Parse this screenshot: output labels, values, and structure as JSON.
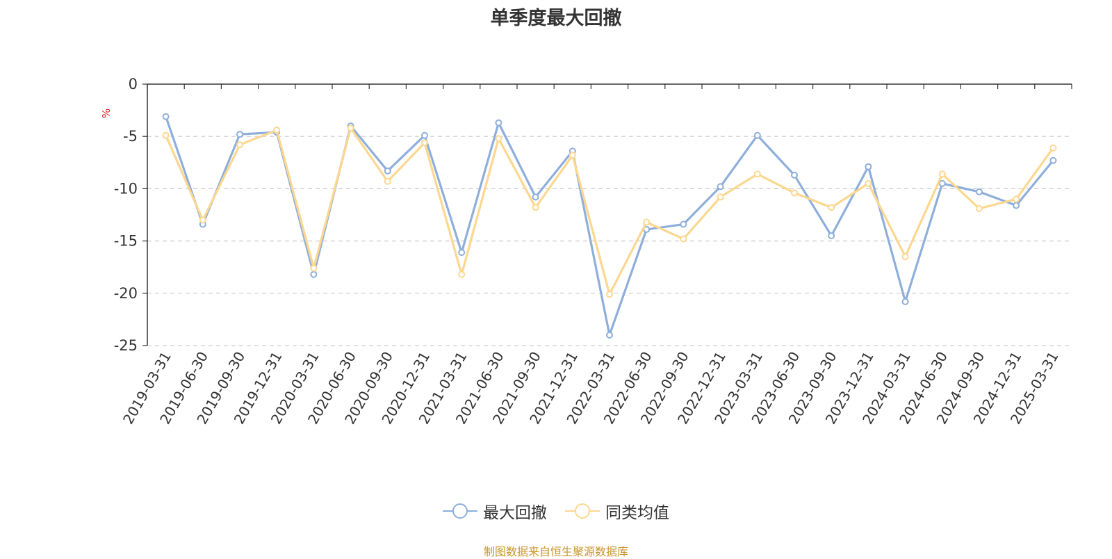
{
  "chart_data": {
    "type": "line",
    "title": "单季度最大回撤",
    "ylabel": "%",
    "xlabel": "",
    "ylim": [
      -25,
      0
    ],
    "yticks": [
      0,
      -5,
      -10,
      -15,
      -20,
      -25
    ],
    "grid": true,
    "legend_position": "bottom",
    "categories": [
      "2019-03-31",
      "2019-06-30",
      "2019-09-30",
      "2019-12-31",
      "2020-03-31",
      "2020-06-30",
      "2020-09-30",
      "2020-12-31",
      "2021-03-31",
      "2021-06-30",
      "2021-09-30",
      "2021-12-31",
      "2022-03-31",
      "2022-06-30",
      "2022-09-30",
      "2022-12-31",
      "2023-03-31",
      "2023-06-30",
      "2023-09-30",
      "2023-12-31",
      "2024-03-31",
      "2024-06-30",
      "2024-09-30",
      "2024-12-31",
      "2025-03-31"
    ],
    "series": [
      {
        "name": "最大回撤",
        "color": "#8eaedb",
        "values": [
          -3.1,
          -13.4,
          -4.8,
          -4.6,
          -18.2,
          -4.0,
          -8.3,
          -4.9,
          -16.1,
          -3.7,
          -10.8,
          -6.4,
          -24.0,
          -13.9,
          -13.4,
          -9.8,
          -4.9,
          -8.7,
          -14.5,
          -7.9,
          -20.8,
          -9.5,
          -10.3,
          -11.6,
          -7.3
        ]
      },
      {
        "name": "同类均值",
        "color": "#fcd78f",
        "values": [
          -4.9,
          -13.0,
          -5.8,
          -4.4,
          -17.6,
          -4.2,
          -9.3,
          -5.6,
          -18.2,
          -5.2,
          -11.8,
          -6.8,
          -20.1,
          -13.2,
          -14.8,
          -10.8,
          -8.6,
          -10.4,
          -11.8,
          -9.5,
          -16.5,
          -8.6,
          -11.9,
          -11.0,
          -6.1
        ]
      }
    ],
    "source": "制图数据来自恒生聚源数据库"
  }
}
